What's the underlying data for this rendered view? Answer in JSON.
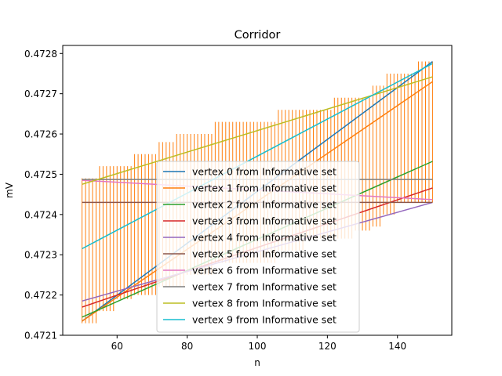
{
  "chart_data": {
    "type": "line",
    "title": "Corridor",
    "xlabel": "n",
    "ylabel": "mV",
    "xlim": [
      44.5,
      155.5
    ],
    "ylim": [
      0.4721,
      0.47282
    ],
    "xticks": [
      60,
      80,
      100,
      120,
      140
    ],
    "xtick_labels": [
      "60",
      "80",
      "100",
      "120",
      "140"
    ],
    "yticks": [
      0.4721,
      0.4722,
      0.4723,
      0.4724,
      0.4725,
      0.4726,
      0.4727,
      0.4728
    ],
    "ytick_labels": [
      "0.4721",
      "0.4722",
      "0.4723",
      "0.4724",
      "0.4725",
      "0.4726",
      "0.4727",
      "0.4728"
    ],
    "grid": false,
    "legend_placement": "lower-center",
    "corridor": {
      "color": "#ff7f0e",
      "x_start": 50,
      "x_end": 150,
      "x_step": 1,
      "lower_steps": [
        {
          "x_from": 50,
          "x_to": 55,
          "y": 0.47213
        },
        {
          "x_from": 55,
          "x_to": 60,
          "y": 0.47216
        },
        {
          "x_from": 60,
          "x_to": 65,
          "y": 0.47219
        },
        {
          "x_from": 65,
          "x_to": 72,
          "y": 0.4722
        },
        {
          "x_from": 72,
          "x_to": 80,
          "y": 0.47222
        },
        {
          "x_from": 80,
          "x_to": 88,
          "y": 0.47225
        },
        {
          "x_from": 88,
          "x_to": 106,
          "y": 0.47228
        },
        {
          "x_from": 106,
          "x_to": 114,
          "y": 0.47231
        },
        {
          "x_from": 114,
          "x_to": 122,
          "y": 0.47234
        },
        {
          "x_from": 122,
          "x_to": 128,
          "y": 0.47234
        },
        {
          "x_from": 128,
          "x_to": 133,
          "y": 0.47236
        },
        {
          "x_from": 133,
          "x_to": 136,
          "y": 0.47237
        },
        {
          "x_from": 136,
          "x_to": 140,
          "y": 0.4724
        },
        {
          "x_from": 140,
          "x_to": 147,
          "y": 0.47243
        },
        {
          "x_from": 147,
          "x_to": 151,
          "y": 0.47243
        }
      ],
      "upper_steps": [
        {
          "x_from": 50,
          "x_to": 55,
          "y": 0.47249
        },
        {
          "x_from": 55,
          "x_to": 60,
          "y": 0.47252
        },
        {
          "x_from": 60,
          "x_to": 65,
          "y": 0.47252
        },
        {
          "x_from": 65,
          "x_to": 72,
          "y": 0.47255
        },
        {
          "x_from": 72,
          "x_to": 77,
          "y": 0.47258
        },
        {
          "x_from": 77,
          "x_to": 88,
          "y": 0.4726
        },
        {
          "x_from": 88,
          "x_to": 106,
          "y": 0.47263
        },
        {
          "x_from": 106,
          "x_to": 122,
          "y": 0.47266
        },
        {
          "x_from": 122,
          "x_to": 133,
          "y": 0.47269
        },
        {
          "x_from": 133,
          "x_to": 137,
          "y": 0.47272
        },
        {
          "x_from": 137,
          "x_to": 146,
          "y": 0.47275
        },
        {
          "x_from": 146,
          "x_to": 151,
          "y": 0.47278
        }
      ]
    },
    "series": [
      {
        "name": "vertex 0 from Informative set",
        "color": "#1f77b4",
        "x": [
          50,
          150
        ],
        "y": [
          0.472135,
          0.47278
        ]
      },
      {
        "name": "vertex 1 from Informative set",
        "color": "#ff7f0e",
        "x": [
          50,
          150
        ],
        "y": [
          0.472135,
          0.47273
        ]
      },
      {
        "name": "vertex 2 from Informative set",
        "color": "#2ca02c",
        "x": [
          50,
          150
        ],
        "y": [
          0.472145,
          0.472532
        ]
      },
      {
        "name": "vertex 3 from Informative set",
        "color": "#d62728",
        "x": [
          50,
          150
        ],
        "y": [
          0.47217,
          0.472466
        ]
      },
      {
        "name": "vertex 4 from Informative set",
        "color": "#9467bd",
        "x": [
          50,
          150
        ],
        "y": [
          0.472185,
          0.47243
        ]
      },
      {
        "name": "vertex 5 from Informative set",
        "color": "#8c564b",
        "x": [
          50,
          150
        ],
        "y": [
          0.47243,
          0.47243
        ]
      },
      {
        "name": "vertex 6 from Informative set",
        "color": "#e377c2",
        "x": [
          50,
          150
        ],
        "y": [
          0.472485,
          0.472437
        ]
      },
      {
        "name": "vertex 7 from Informative set",
        "color": "#7f7f7f",
        "x": [
          50,
          150
        ],
        "y": [
          0.472487,
          0.472487
        ]
      },
      {
        "name": "vertex 8 from Informative set",
        "color": "#bcbd22",
        "x": [
          50,
          150
        ],
        "y": [
          0.472475,
          0.472742
        ]
      },
      {
        "name": "vertex 9 from Informative set",
        "color": "#17becf",
        "x": [
          50,
          150
        ],
        "y": [
          0.472315,
          0.472775
        ]
      }
    ]
  }
}
